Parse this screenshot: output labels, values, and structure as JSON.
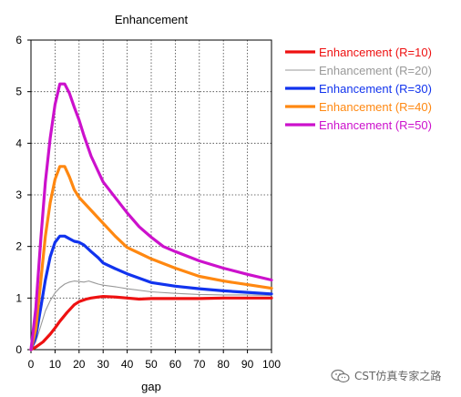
{
  "chart_data": {
    "type": "line",
    "title": "Enhancement",
    "xlabel": "gap",
    "ylabel": "",
    "xlim": [
      0,
      100
    ],
    "ylim": [
      0,
      6
    ],
    "xticks": [
      0,
      10,
      20,
      30,
      40,
      50,
      60,
      70,
      80,
      90,
      100
    ],
    "yticks": [
      0,
      1,
      2,
      3,
      4,
      5,
      6
    ],
    "grid": true,
    "legend_position": "right",
    "series": [
      {
        "name": "Enhancement (R=10)",
        "color": "#ee1111",
        "style": "thick",
        "x": [
          0,
          2,
          5,
          8,
          10,
          12,
          15,
          18,
          20,
          23,
          25,
          28,
          30,
          35,
          40,
          45,
          50,
          60,
          70,
          80,
          90,
          100
        ],
        "y": [
          0,
          0.05,
          0.15,
          0.3,
          0.42,
          0.55,
          0.72,
          0.87,
          0.93,
          0.98,
          1.0,
          1.02,
          1.03,
          1.02,
          1.0,
          0.98,
          0.99,
          0.99,
          0.99,
          1.0,
          1.0,
          1.0
        ]
      },
      {
        "name": "Enhancement (R=20)",
        "color": "#999999",
        "style": "thin",
        "x": [
          0,
          2,
          4,
          6,
          8,
          10,
          12,
          14,
          16,
          18,
          20,
          22,
          24,
          26,
          28,
          30,
          35,
          40,
          50,
          60,
          70,
          80,
          90,
          100
        ],
        "y": [
          0,
          0.15,
          0.45,
          0.75,
          0.95,
          1.1,
          1.2,
          1.27,
          1.31,
          1.33,
          1.32,
          1.31,
          1.33,
          1.3,
          1.27,
          1.25,
          1.22,
          1.18,
          1.12,
          1.09,
          1.07,
          1.06,
          1.06,
          1.05
        ]
      },
      {
        "name": "Enhancement (R=30)",
        "color": "#1133ee",
        "style": "thick",
        "x": [
          0,
          2,
          4,
          6,
          8,
          10,
          12,
          14,
          16,
          18,
          20,
          22,
          25,
          28,
          30,
          35,
          40,
          50,
          60,
          70,
          80,
          90,
          100
        ],
        "y": [
          0,
          0.25,
          0.8,
          1.35,
          1.8,
          2.08,
          2.2,
          2.2,
          2.15,
          2.1,
          2.08,
          2.03,
          1.9,
          1.78,
          1.68,
          1.57,
          1.47,
          1.3,
          1.23,
          1.18,
          1.14,
          1.11,
          1.08
        ]
      },
      {
        "name": "Enhancement (R=40)",
        "color": "#ff8811",
        "style": "thick",
        "x": [
          0,
          2,
          4,
          6,
          8,
          10,
          12,
          14,
          16,
          18,
          20,
          22,
          25,
          28,
          30,
          35,
          40,
          45,
          50,
          60,
          70,
          80,
          90,
          100
        ],
        "y": [
          0,
          0.4,
          1.3,
          2.2,
          2.85,
          3.3,
          3.55,
          3.55,
          3.35,
          3.1,
          2.95,
          2.85,
          2.7,
          2.55,
          2.45,
          2.2,
          1.98,
          1.87,
          1.76,
          1.58,
          1.42,
          1.33,
          1.26,
          1.19
        ]
      },
      {
        "name": "Enhancement (R=50)",
        "color": "#cc11cc",
        "style": "thick",
        "x": [
          0,
          2,
          4,
          6,
          8,
          10,
          12,
          14,
          16,
          18,
          20,
          22,
          25,
          28,
          30,
          35,
          40,
          45,
          50,
          55,
          60,
          70,
          80,
          90,
          100
        ],
        "y": [
          0,
          0.8,
          2.1,
          3.25,
          4.1,
          4.75,
          5.15,
          5.15,
          4.97,
          4.7,
          4.45,
          4.15,
          3.75,
          3.45,
          3.25,
          2.95,
          2.65,
          2.38,
          2.18,
          2.0,
          1.9,
          1.72,
          1.58,
          1.46,
          1.35
        ]
      }
    ]
  },
  "watermark": {
    "text": "CST仿真专家之路",
    "icon": "wechat-icon"
  }
}
